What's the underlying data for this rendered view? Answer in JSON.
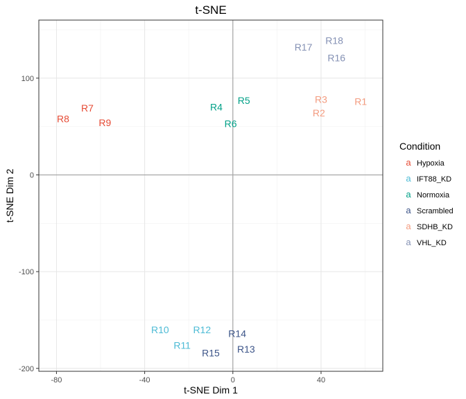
{
  "chart_data": {
    "type": "scatter",
    "title": "t-SNE",
    "xlabel": "t-SNE Dim 1",
    "ylabel": "t-SNE Dim 2",
    "xlim": [
      -88,
      68
    ],
    "ylim": [
      -203,
      160
    ],
    "x_ticks": [
      -80,
      -40,
      0,
      40
    ],
    "y_ticks": [
      -200,
      -100,
      0,
      100
    ],
    "grid": true,
    "zero_lines": true,
    "legend": {
      "title": "Condition",
      "placement": "right",
      "key_glyph": "a",
      "items": [
        {
          "name": "Hypoxia",
          "color": "#e64b35"
        },
        {
          "name": "IFT88_KD",
          "color": "#4dbbd5"
        },
        {
          "name": "Normoxia",
          "color": "#00a087"
        },
        {
          "name": "Scrambled",
          "color": "#3c5488"
        },
        {
          "name": "SDHB_KD",
          "color": "#f39b7f"
        },
        {
          "name": "VHL_KD",
          "color": "#8491b4"
        }
      ]
    },
    "points": [
      {
        "label": "R1",
        "x": 58,
        "y": 76,
        "condition": "SDHB_KD"
      },
      {
        "label": "R2",
        "x": 39,
        "y": 64,
        "condition": "SDHB_KD"
      },
      {
        "label": "R3",
        "x": 40,
        "y": 78,
        "condition": "SDHB_KD"
      },
      {
        "label": "R4",
        "x": -7.5,
        "y": 70,
        "condition": "Normoxia"
      },
      {
        "label": "R5",
        "x": 5,
        "y": 77,
        "condition": "Normoxia"
      },
      {
        "label": "R6",
        "x": -1,
        "y": 53,
        "condition": "Normoxia"
      },
      {
        "label": "R7",
        "x": -66,
        "y": 69,
        "condition": "Hypoxia"
      },
      {
        "label": "R8",
        "x": -77,
        "y": 58,
        "condition": "Hypoxia"
      },
      {
        "label": "R9",
        "x": -58,
        "y": 54,
        "condition": "Hypoxia"
      },
      {
        "label": "R10",
        "x": -33,
        "y": -160,
        "condition": "IFT88_KD"
      },
      {
        "label": "R11",
        "x": -23,
        "y": -176,
        "condition": "IFT88_KD"
      },
      {
        "label": "R12",
        "x": -14,
        "y": -160,
        "condition": "IFT88_KD"
      },
      {
        "label": "R13",
        "x": 6,
        "y": -180,
        "condition": "Scrambled"
      },
      {
        "label": "R14",
        "x": 2,
        "y": -164,
        "condition": "Scrambled"
      },
      {
        "label": "R15",
        "x": -10,
        "y": -184,
        "condition": "Scrambled"
      },
      {
        "label": "R16",
        "x": 47,
        "y": 121,
        "condition": "VHL_KD"
      },
      {
        "label": "R17",
        "x": 32,
        "y": 132,
        "condition": "VHL_KD"
      },
      {
        "label": "R18",
        "x": 46,
        "y": 139,
        "condition": "VHL_KD"
      }
    ]
  }
}
